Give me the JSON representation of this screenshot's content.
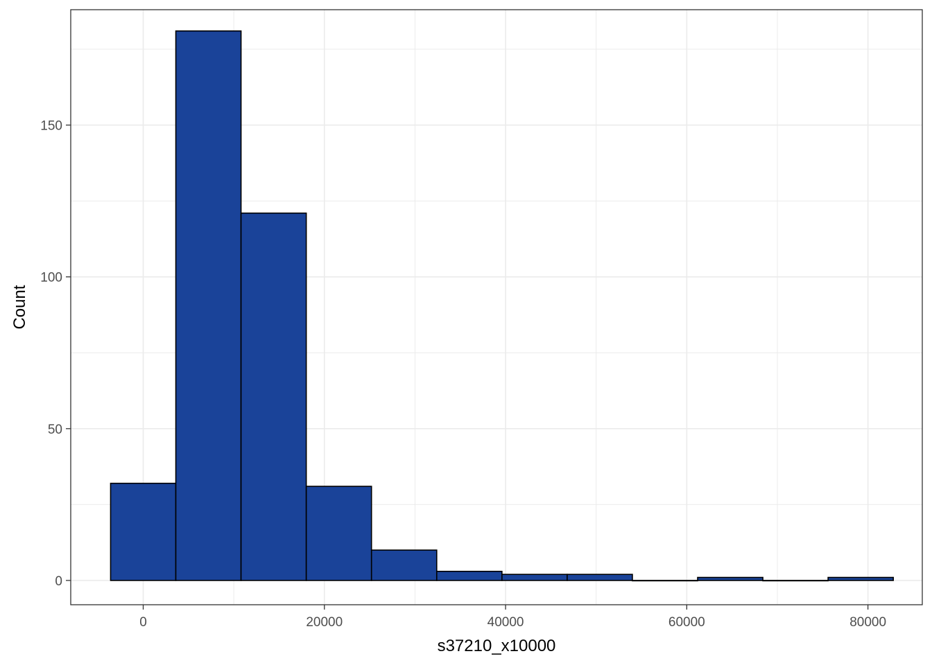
{
  "chart_data": {
    "type": "bar",
    "subtype": "histogram",
    "title": "",
    "xlabel": "s37210_x10000",
    "ylabel": "Count",
    "xlim": [
      -8000,
      86000
    ],
    "ylim": [
      -8,
      188
    ],
    "x_ticks": [
      0,
      20000,
      40000,
      60000,
      80000
    ],
    "x_tick_labels": [
      "0",
      "20000",
      "40000",
      "60000",
      "80000"
    ],
    "y_ticks": [
      0,
      50,
      100,
      150
    ],
    "y_tick_labels": [
      "0",
      "50",
      "100",
      "150"
    ],
    "bins": [
      {
        "x0": -3600,
        "x1": 3600,
        "count": 32
      },
      {
        "x0": 3600,
        "x1": 10800,
        "count": 181
      },
      {
        "x0": 10800,
        "x1": 18000,
        "count": 121
      },
      {
        "x0": 18000,
        "x1": 25200,
        "count": 31
      },
      {
        "x0": 25200,
        "x1": 32400,
        "count": 10
      },
      {
        "x0": 32400,
        "x1": 39600,
        "count": 3
      },
      {
        "x0": 39600,
        "x1": 46800,
        "count": 2
      },
      {
        "x0": 46800,
        "x1": 54000,
        "count": 2
      },
      {
        "x0": 54000,
        "x1": 61200,
        "count": 0
      },
      {
        "x0": 61200,
        "x1": 68400,
        "count": 1
      },
      {
        "x0": 68400,
        "x1": 75600,
        "count": 0
      },
      {
        "x0": 75600,
        "x1": 82800,
        "count": 1
      }
    ],
    "grid": true,
    "legend": "none",
    "bar_fill": "#1A4399",
    "bar_outline": "#000000",
    "grid_color": "#EBEBEB",
    "panel_border_color": "#333333"
  }
}
